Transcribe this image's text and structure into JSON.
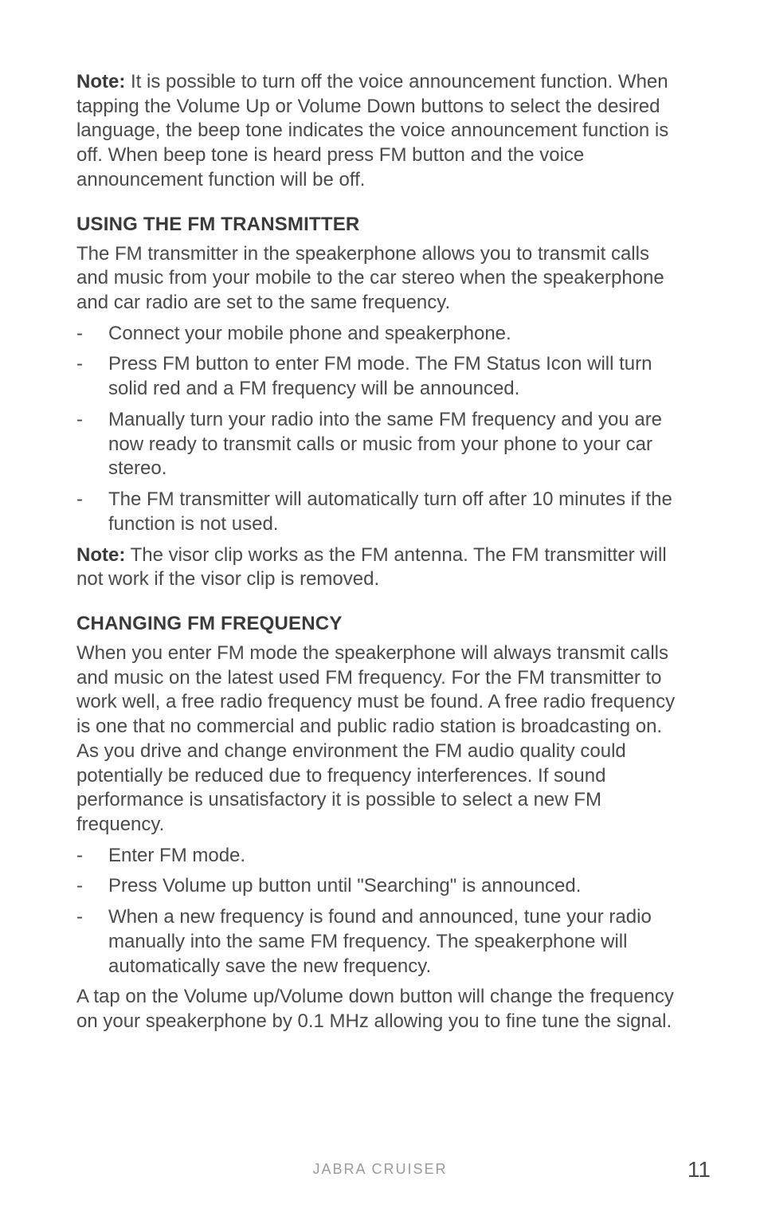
{
  "note1": {
    "label": "Note:",
    "text": " It is possible to turn off the voice announcement function. When tapping the Volume Up or Volume Down buttons to select the desired language, the beep tone indicates the voice announcement function is off. When beep tone is heard press FM button and the voice announcement function will be off."
  },
  "section1": {
    "heading": "USING THE FM TRANSMITTER",
    "intro": "The FM transmitter in the speakerphone allows you to transmit calls and music from your mobile to the car stereo when the speakerphone and car radio are set to the same frequency.",
    "items": [
      "Connect your mobile phone and speakerphone.",
      "Press FM button to enter FM mode. The FM Status Icon will turn solid red and a FM frequency will be announced.",
      "Manually turn your radio into the same FM frequency and you are now ready to transmit calls or music from your phone to your car stereo.",
      "The FM transmitter will automatically turn off after 10 minutes if the function is not used."
    ]
  },
  "note2": {
    "label": "Note:",
    "text": " The visor clip works as the FM antenna. The FM transmitter will not work if the visor clip is removed."
  },
  "section2": {
    "heading": "CHANGING FM FREQUENCY",
    "intro": "When you enter FM mode the speakerphone will always transmit calls and music on the latest used FM frequency. For the FM transmitter to work well, a free radio frequency must be found. A free radio frequency is one that no commercial and public radio station is broadcasting on. As you drive and change environment the FM audio quality could potentially be reduced due to frequency interferences. If sound performance is unsatisfactory it is possible to select a new FM frequency.",
    "items": [
      "Enter FM mode.",
      "Press Volume up button until \"Searching\" is announced.",
      "When a new frequency is found and announced, tune your radio manually into the same FM frequency. The speakerphone will automatically save the new frequency."
    ],
    "outro": "A tap on the Volume up/Volume down button will change the frequency on your speakerphone by 0.1 MHz allowing you to fine tune the signal."
  },
  "footer": {
    "title": "JABRA CRUISER",
    "page": "11"
  }
}
